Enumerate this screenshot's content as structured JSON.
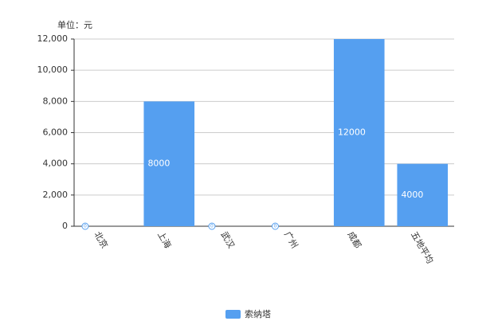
{
  "chart_data": {
    "type": "bar",
    "unit_label": "单位：元",
    "categories": [
      "北京",
      "上海",
      "武汉",
      "广州",
      "成都",
      "五地平均"
    ],
    "series": [
      {
        "name": "索纳塔",
        "color": "#559ff0",
        "values": [
          0,
          8000,
          0,
          0,
          12000,
          4000
        ]
      }
    ],
    "ylim": [
      0,
      12000
    ],
    "yticks": [
      0,
      {
        "value": 2000,
        "label": "2,000"
      },
      {
        "value": 4000,
        "label": "4,000"
      },
      {
        "value": 6000,
        "label": "6,000"
      },
      {
        "value": 8000,
        "label": "8,000"
      },
      {
        "value": 10000,
        "label": "10,000"
      },
      {
        "value": 12000,
        "label": "12,000"
      }
    ],
    "grid": true,
    "legend": "bottom"
  }
}
